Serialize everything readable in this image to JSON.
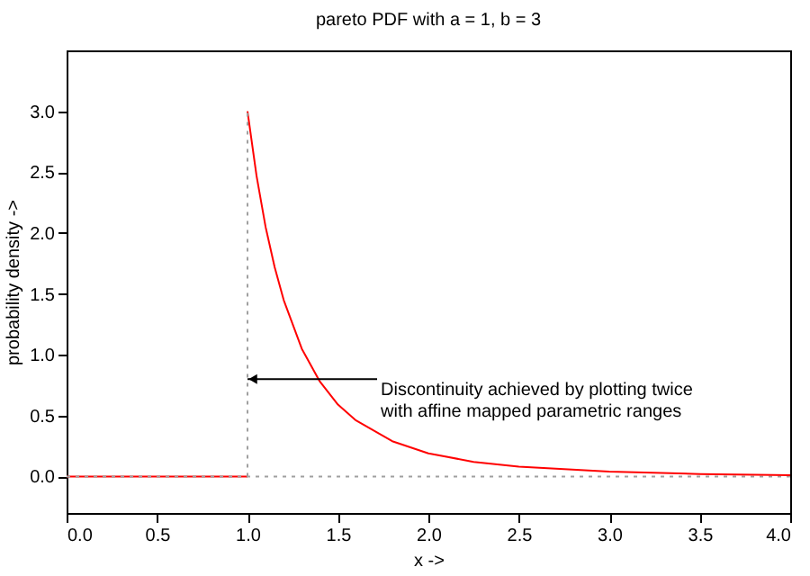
{
  "chart_data": {
    "type": "line",
    "title": "pareto PDF with a = 1, b = 3",
    "xlabel": "x ->",
    "ylabel": "probability density ->",
    "xlim": [
      0,
      4
    ],
    "ylim": [
      -0.3,
      3.5
    ],
    "xticks": [
      {
        "value": 0,
        "label": "0.0"
      },
      0.5,
      {
        "value": 1,
        "label": "1.0"
      },
      1.5,
      {
        "value": 2,
        "label": "2.0"
      },
      2.5,
      {
        "value": 3,
        "label": "3.0"
      },
      3.5,
      {
        "value": 4,
        "label": "4.0"
      }
    ],
    "yticks": [
      {
        "value": 0,
        "label": "0.0"
      },
      0.5,
      {
        "value": 1,
        "label": "1.0"
      },
      1.5,
      {
        "value": 2,
        "label": "2.0"
      },
      2.5,
      {
        "value": 3,
        "label": "3.0"
      }
    ],
    "grid": false,
    "marker": "none",
    "series": [
      {
        "color": "#ff0000",
        "x": [
          0,
          1
        ],
        "values": [
          0,
          0
        ]
      },
      {
        "color": "#ff0000",
        "x": [
          1,
          1.05,
          1.1,
          1.15,
          1.2,
          1.3,
          1.4,
          1.5,
          1.6,
          1.8,
          2.0,
          2.25,
          2.5,
          3.0,
          3.5,
          4.0
        ],
        "values": [
          3,
          2.47,
          2.05,
          1.72,
          1.45,
          1.05,
          0.78,
          0.59,
          0.46,
          0.29,
          0.19,
          0.12,
          0.08,
          0.04,
          0.02,
          0.01
        ]
      },
      {
        "color": "#a0a0a0",
        "line_style": "dotted",
        "x": [
          1,
          1
        ],
        "values": [
          0,
          3
        ]
      }
    ],
    "ref_lines": [
      {
        "axis": "y",
        "value": 0,
        "color": "#a0a0a0",
        "line_style": "dotted"
      }
    ],
    "annotations": [
      {
        "text": "Discontinuity achieved by plotting twice\nwith affine mapped parametric ranges",
        "x": 1,
        "y": 0.8
      }
    ]
  }
}
